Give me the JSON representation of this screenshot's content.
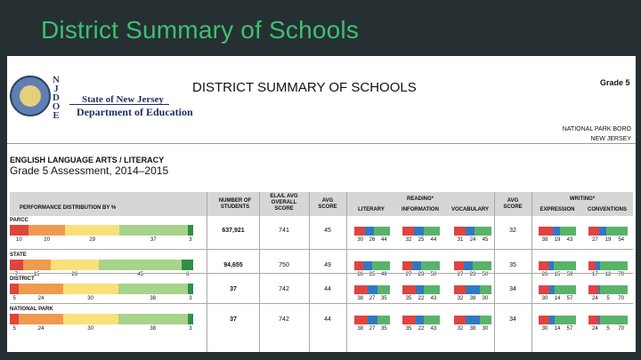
{
  "slide": {
    "title": "District Summary of Schools"
  },
  "header": {
    "logo_letters": [
      "N",
      "J",
      "D",
      "O",
      "E"
    ],
    "agency_line1": "State of New Jersey",
    "agency_line2": "Department of Education",
    "doc_title": "DISTRICT SUMMARY OF SCHOOLS",
    "grade_label": "Grade 5",
    "district_name": "NATIONAL PARK BORO",
    "district_state": "NEW JERSEY",
    "subject": "ENGLISH LANGUAGE ARTS / LITERACY",
    "assessment": "Grade 5 Assessment, 2014–2015"
  },
  "table": {
    "headers": {
      "perf_dist": "PERFORMANCE DISTRIBUTION BY %",
      "num_students": [
        "NUMBER OF",
        "STUDENTS"
      ],
      "ela_avg": [
        "ELA/L AVG",
        "OVERALL",
        "SCORE"
      ],
      "avg_score": [
        "AVG",
        "SCORE"
      ],
      "reading": "READING*",
      "literary": "LITERARY",
      "information": "INFORMATION",
      "vocabulary": "VOCABULARY",
      "avg_score2": [
        "AVG",
        "SCORE"
      ],
      "writing": "WRITING*",
      "expression": "EXPRESSION",
      "conventions": "CONVENTIONS"
    },
    "level_colors": [
      "#e0453c",
      "#ef9a4f",
      "#f9e17a",
      "#a7d38b",
      "#2f8f4a"
    ],
    "mini_colors": [
      "#e04340",
      "#2f79c4",
      "#5ab36a"
    ],
    "rows": [
      {
        "label": "PARCC",
        "dist": [
          10,
          20,
          29,
          37,
          3
        ],
        "students": "637,921",
        "ela_avg": "741",
        "avg_score": "45",
        "literary": [
          30,
          26,
          44
        ],
        "information": [
          32,
          25,
          44
        ],
        "vocabulary": [
          31,
          24,
          45
        ],
        "avg_score2": "32",
        "expression": [
          38,
          19,
          43
        ],
        "conventions": [
          27,
          19,
          54
        ]
      },
      {
        "label": "STATE",
        "dist": [
          7,
          15,
          26,
          45,
          6
        ],
        "students": "94,655",
        "ela_avg": "750",
        "avg_score": "49",
        "literary": [
          26,
          25,
          49
        ],
        "information": [
          27,
          23,
          50
        ],
        "vocabulary": [
          27,
          23,
          50
        ],
        "avg_score2": "35",
        "expression": [
          26,
          15,
          59
        ],
        "conventions": [
          17,
          12,
          70
        ]
      },
      {
        "label": "DISTRICT",
        "dist": [
          5,
          24,
          30,
          38,
          3
        ],
        "students": "37",
        "ela_avg": "742",
        "avg_score": "44",
        "literary": [
          38,
          27,
          35
        ],
        "information": [
          35,
          22,
          43
        ],
        "vocabulary": [
          32,
          38,
          30
        ],
        "avg_score2": "34",
        "expression": [
          30,
          14,
          57
        ],
        "conventions": [
          24,
          5,
          70
        ]
      },
      {
        "label": "NATIONAL PARK",
        "dist": [
          5,
          24,
          30,
          38,
          3
        ],
        "students": "37",
        "ela_avg": "742",
        "avg_score": "44",
        "literary": [
          38,
          27,
          35
        ],
        "information": [
          35,
          22,
          43
        ],
        "vocabulary": [
          32,
          38,
          30
        ],
        "avg_score2": "34",
        "expression": [
          30,
          14,
          57
        ],
        "conventions": [
          24,
          5,
          70
        ]
      }
    ]
  }
}
